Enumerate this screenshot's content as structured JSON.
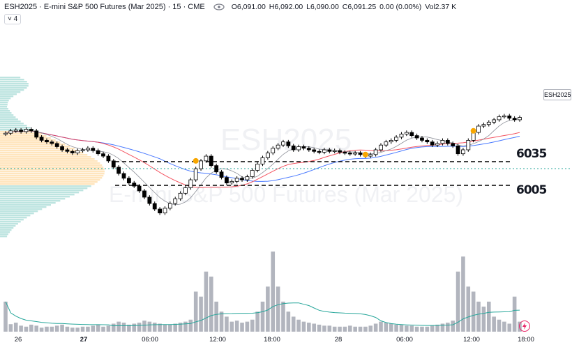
{
  "header": {
    "symbol_line": "ESH2025 · E-mini S&P 500 Futures (Mar 2025) · 15 · CME",
    "open_label": "O",
    "open": "6,091.00",
    "high_label": "H",
    "high": "6,092.00",
    "low_label": "L",
    "low": "6,090.00",
    "close_label": "C",
    "close": "6,091.25",
    "change": "0.00 (0.00%)",
    "vol_label": "Vol",
    "vol": "2.37 K",
    "indicators_button": "˅ 4"
  },
  "watermark": {
    "symbol": "ESH2025",
    "name": "E-mini S&P 500 Futures (Mar 2025)"
  },
  "price_tag": "ESH2025",
  "levels": [
    {
      "label": "6035",
      "price": 6035
    },
    {
      "label": "6005",
      "price": 6005
    }
  ],
  "colors": {
    "up": "#000000",
    "down": "#000000",
    "volume": "#b2b5be",
    "ema_red": "#f23645",
    "ema_blue": "#2962ff",
    "profile_green": "#b2dfdb",
    "profile_orange": "#ffe0b2",
    "poc": "#26a69a",
    "marker": "#f7a600"
  },
  "x_ticks": [
    {
      "label": "26",
      "bold": false
    },
    {
      "label": "27",
      "bold": true
    },
    {
      "label": "06:00",
      "bold": false
    },
    {
      "label": "12:00",
      "bold": false
    },
    {
      "label": "18:00",
      "bold": false
    },
    {
      "label": "28",
      "bold": false
    },
    {
      "label": "06:00",
      "bold": false
    },
    {
      "label": "12:00",
      "bold": false
    },
    {
      "label": "18:00",
      "bold": false
    }
  ],
  "chart_data": {
    "type": "candlestick",
    "interval": "15",
    "close_series": [
      6071,
      6074,
      6075,
      6073,
      6076,
      6074,
      6066,
      6062,
      6060,
      6058,
      6054,
      6050,
      6048,
      6046,
      6049,
      6050,
      6052,
      6049,
      6045,
      6042,
      6036,
      6028,
      6020,
      6014,
      6008,
      6004,
      5998,
      5990,
      5982,
      5975,
      5970,
      5976,
      5982,
      5988,
      5995,
      6002,
      6012,
      6026,
      6036,
      6042,
      6030,
      6022,
      6015,
      6008,
      6010,
      6014,
      6012,
      6016,
      6024,
      6032,
      6040,
      6046,
      6052,
      6056,
      6060,
      6055,
      6050,
      6054,
      6052,
      6050,
      6048,
      6047,
      6050,
      6048,
      6049,
      6047,
      6046,
      6045,
      6046,
      6044,
      6042,
      6044,
      6050,
      6056,
      6060,
      6062,
      6066,
      6070,
      6072,
      6068,
      6065,
      6062,
      6060,
      6056,
      6058,
      6062,
      6058,
      6055,
      6045,
      6050,
      6062,
      6072,
      6080,
      6082,
      6085,
      6088,
      6092,
      6093,
      6090,
      6088,
      6091
    ],
    "volume_series": [
      60,
      15,
      18,
      12,
      10,
      14,
      12,
      8,
      10,
      10,
      12,
      14,
      10,
      8,
      8,
      10,
      10,
      12,
      14,
      10,
      12,
      16,
      20,
      18,
      14,
      16,
      18,
      22,
      20,
      18,
      16,
      14,
      14,
      16,
      18,
      20,
      24,
      80,
      70,
      120,
      110,
      60,
      40,
      30,
      20,
      22,
      18,
      20,
      24,
      40,
      60,
      90,
      160,
      90,
      60,
      40,
      30,
      24,
      20,
      18,
      16,
      14,
      12,
      12,
      10,
      10,
      10,
      12,
      10,
      10,
      10,
      12,
      16,
      20,
      18,
      16,
      14,
      14,
      12,
      12,
      10,
      10,
      10,
      12,
      14,
      16,
      18,
      22,
      120,
      150,
      90,
      80,
      60,
      50,
      60,
      30,
      24,
      20,
      16,
      70,
      20
    ],
    "levels": [
      6035,
      6005
    ],
    "last_price_label": "ESH2025"
  }
}
